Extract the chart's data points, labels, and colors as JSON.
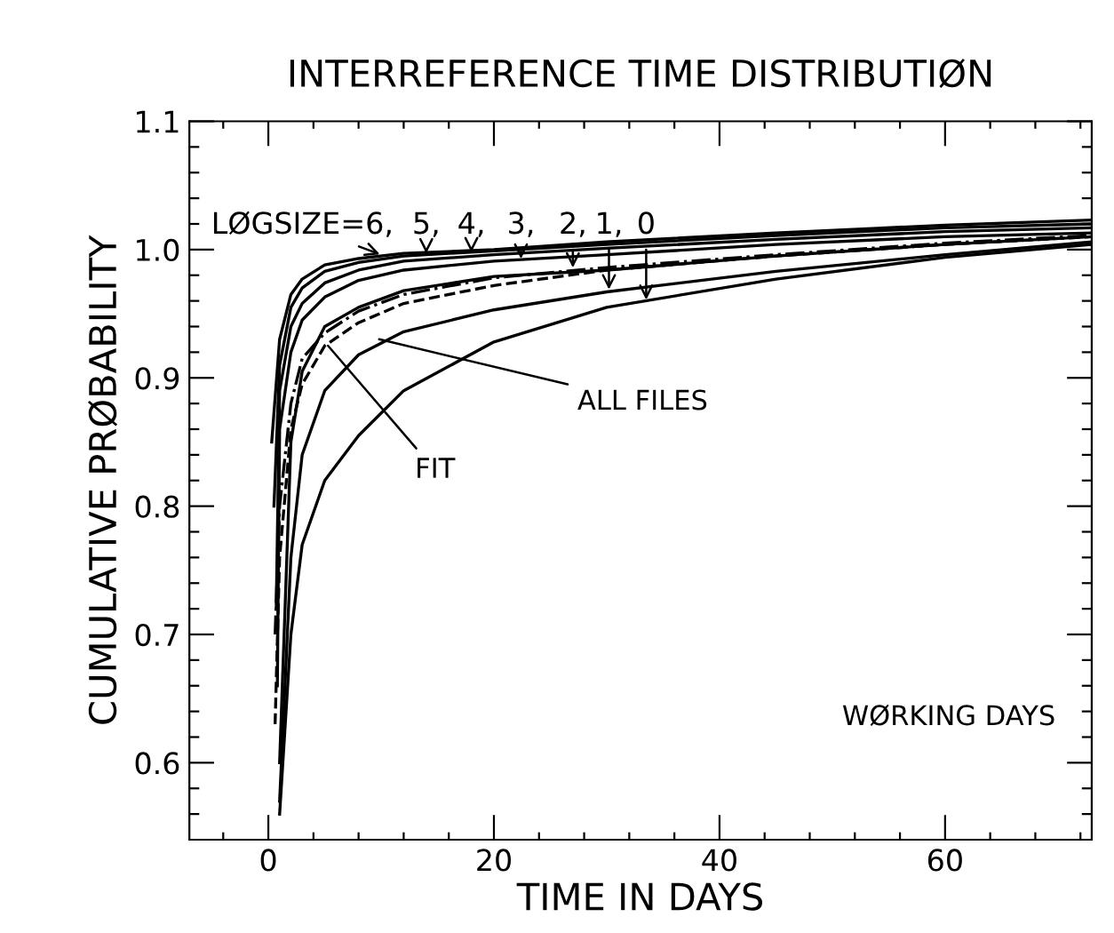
{
  "chart_data": {
    "type": "line",
    "title": "INTERREFERENCE TIME DISTRIBUTIØN",
    "xlabel": "TIME IN DAYS",
    "ylabel": "CUMULATIVE PRØBABILITY",
    "xlim": [
      -7,
      73
    ],
    "ylim": [
      0.54,
      1.1
    ],
    "xticks": [
      {
        "value": -4,
        "label": null
      },
      0,
      {
        "value": 4,
        "label": null
      },
      {
        "value": 8,
        "label": null
      },
      {
        "value": 12,
        "label": null
      },
      {
        "value": 16,
        "label": null
      },
      20,
      {
        "value": 24,
        "label": null
      },
      {
        "value": 28,
        "label": null
      },
      {
        "value": 32,
        "label": null
      },
      {
        "value": 36,
        "label": null
      },
      40,
      {
        "value": 44,
        "label": null
      },
      {
        "value": 48,
        "label": null
      },
      {
        "value": 52,
        "label": null
      },
      {
        "value": 56,
        "label": null
      },
      60,
      {
        "value": 64,
        "label": null
      },
      {
        "value": 68,
        "label": null
      },
      {
        "value": 72,
        "label": null
      }
    ],
    "yticks": [
      {
        "value": 0.56,
        "label": null
      },
      {
        "value": 0.58,
        "label": null
      },
      0.6,
      {
        "value": 0.62,
        "label": null
      },
      {
        "value": 0.64,
        "label": null
      },
      {
        "value": 0.66,
        "label": null
      },
      {
        "value": 0.68,
        "label": null
      },
      0.7,
      {
        "value": 0.72,
        "label": null
      },
      {
        "value": 0.74,
        "label": null
      },
      {
        "value": 0.76,
        "label": null
      },
      {
        "value": 0.78,
        "label": null
      },
      0.8,
      {
        "value": 0.82,
        "label": null
      },
      {
        "value": 0.84,
        "label": null
      },
      {
        "value": 0.86,
        "label": null
      },
      {
        "value": 0.88,
        "label": null
      },
      0.9,
      {
        "value": 0.92,
        "label": null
      },
      {
        "value": 0.94,
        "label": null
      },
      {
        "value": 0.96,
        "label": null
      },
      {
        "value": 0.98,
        "label": null
      },
      {
        "value": 1.0,
        "label": "1.0"
      },
      {
        "value": 1.02,
        "label": null
      },
      {
        "value": 1.04,
        "label": null
      },
      {
        "value": 1.06,
        "label": null
      },
      {
        "value": 1.08,
        "label": null
      },
      1.1
    ],
    "grid": false,
    "legend": false,
    "marker": "none",
    "series": [
      {
        "color": "#000000",
        "line_style": "solid",
        "x": [
          0.3,
          1,
          2,
          3,
          5,
          8,
          12,
          20,
          30,
          45,
          60,
          73
        ],
        "values": [
          0.85,
          0.93,
          0.965,
          0.977,
          0.988,
          0.993,
          0.997,
          1.0,
          1.006,
          1.013,
          1.019,
          1.023
        ]
      },
      {
        "color": "#000000",
        "line_style": "solid",
        "x": [
          0.5,
          1,
          2,
          3,
          5,
          8,
          12,
          20,
          30,
          45,
          60,
          73
        ],
        "values": [
          0.8,
          0.91,
          0.955,
          0.97,
          0.983,
          0.99,
          0.995,
          0.999,
          1.004,
          1.011,
          1.017,
          1.02
        ]
      },
      {
        "color": "#000000",
        "line_style": "solid",
        "x": [
          0.7,
          1,
          2,
          3,
          5,
          8,
          12,
          20,
          30,
          45,
          60,
          73
        ],
        "values": [
          0.72,
          0.89,
          0.94,
          0.958,
          0.974,
          0.984,
          0.991,
          0.996,
          1.001,
          1.008,
          1.014,
          1.017
        ]
      },
      {
        "color": "#000000",
        "line_style": "solid",
        "x": [
          0.8,
          1,
          2,
          3,
          5,
          8,
          12,
          20,
          30,
          45,
          60,
          73
        ],
        "values": [
          0.66,
          0.86,
          0.92,
          0.945,
          0.963,
          0.976,
          0.984,
          0.991,
          0.996,
          1.004,
          1.01,
          1.013
        ]
      },
      {
        "color": "#000000",
        "line_style": "solid",
        "x": [
          1,
          2,
          3,
          5,
          8,
          12,
          20,
          30,
          45,
          60,
          73
        ],
        "values": [
          0.6,
          0.85,
          0.905,
          0.94,
          0.955,
          0.968,
          0.979,
          0.984,
          0.995,
          1.004,
          1.01
        ]
      },
      {
        "color": "#000000",
        "line_style": "solid",
        "x": [
          1,
          2,
          3,
          5,
          8,
          12,
          20,
          30,
          45,
          60,
          73
        ],
        "values": [
          0.57,
          0.76,
          0.84,
          0.89,
          0.918,
          0.936,
          0.953,
          0.967,
          0.983,
          0.996,
          1.006
        ]
      },
      {
        "color": "#000000",
        "line_style": "solid",
        "x": [
          1,
          2,
          3,
          5,
          8,
          12,
          20,
          30,
          45,
          60,
          73
        ],
        "values": [
          0.56,
          0.7,
          0.77,
          0.82,
          0.855,
          0.89,
          0.928,
          0.955,
          0.977,
          0.994,
          1.004
        ]
      },
      {
        "color": "#000000",
        "line_style": "dashdot",
        "x": [
          0.6,
          1,
          2,
          3,
          5,
          8,
          12,
          20,
          30,
          45,
          60,
          73
        ],
        "values": [
          0.7,
          0.8,
          0.88,
          0.915,
          0.935,
          0.952,
          0.965,
          0.978,
          0.986,
          0.996,
          1.005,
          1.011
        ]
      },
      {
        "color": "#000000",
        "line_style": "dashed",
        "x": [
          0.6,
          1,
          2,
          3,
          5,
          8,
          12,
          20,
          30,
          45,
          60,
          73
        ],
        "values": [
          0.63,
          0.76,
          0.86,
          0.895,
          0.925,
          0.943,
          0.958,
          0.972,
          0.984,
          0.995,
          1.004,
          1.01
        ]
      }
    ],
    "annotations": [
      {
        "text": "LØGSIZE=6,",
        "x": 10.3,
        "y": 0.995
      },
      {
        "text": "5,",
        "x": 14,
        "y": 0.997
      },
      {
        "text": "4,",
        "x": 18,
        "y": 0.994
      },
      {
        "text": "3,",
        "x": 22.4,
        "y": 0.989
      },
      {
        "text": "2,",
        "x": 27,
        "y": 0.982
      },
      {
        "text": "1,",
        "x": 30.2,
        "y": 0.965
      },
      {
        "text": "0",
        "x": 33.5,
        "y": 0.957
      },
      {
        "text": "ALL FILES",
        "x": 9.4,
        "y": 0.931
      },
      {
        "text": "FIT",
        "x": 5,
        "y": 0.928
      },
      "WØRKING DAYS"
    ]
  }
}
